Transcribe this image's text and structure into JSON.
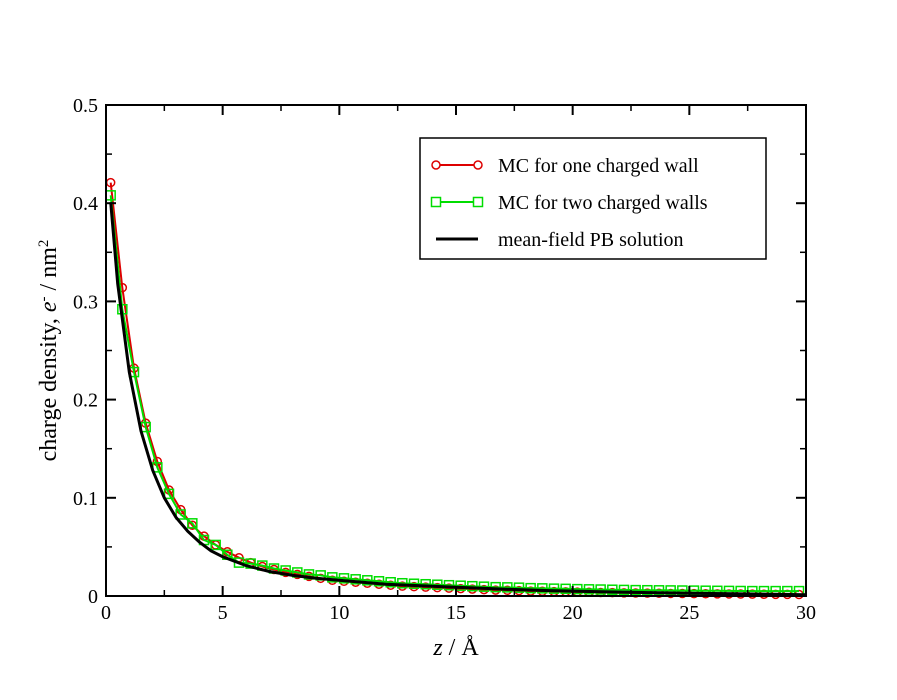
{
  "chart_data": {
    "type": "line",
    "title": "",
    "xlabel": {
      "symbol": "z",
      "rest": " / Å"
    },
    "ylabel": {
      "prefix": "charge density, ",
      "symbol": "e",
      "sup_minus": "-",
      "mid": " / nm",
      "sup_two": "2"
    },
    "xlim": [
      0,
      30
    ],
    "ylim": [
      0,
      0.5
    ],
    "x_ticks": [
      0,
      5,
      10,
      15,
      20,
      25,
      30
    ],
    "x_tick_labels": [
      "0",
      "5",
      "10",
      "15",
      "20",
      "25",
      "30"
    ],
    "y_ticks": [
      0,
      0.1,
      0.2,
      0.3,
      0.4,
      0.5
    ],
    "y_tick_labels": [
      "0",
      "0.1",
      "0.2",
      "0.3",
      "0.4",
      "0.5"
    ],
    "x_minor_step": 2.5,
    "y_minor_step": 0.05,
    "grid": false,
    "legend_position": "top-right",
    "series": [
      {
        "name": "MC for one charged wall",
        "color": "#dd0000",
        "marker": "circle",
        "x": [
          0.2,
          0.7,
          1.2,
          1.7,
          2.2,
          2.7,
          3.2,
          3.7,
          4.2,
          4.7,
          5.2,
          5.7,
          6.2,
          6.7,
          7.2,
          7.7,
          8.2,
          8.7,
          9.2,
          9.7,
          10.2,
          10.7,
          11.2,
          11.7,
          12.2,
          12.7,
          13.2,
          13.7,
          14.2,
          14.7,
          15.2,
          15.7,
          16.2,
          16.7,
          17.2,
          17.7,
          18.2,
          18.7,
          19.2,
          19.7,
          20.2,
          20.7,
          21.2,
          21.7,
          22.2,
          22.7,
          23.2,
          23.7,
          24.2,
          24.7,
          25.2,
          25.7,
          26.2,
          26.7,
          27.2,
          27.7,
          28.2,
          28.7,
          29.2,
          29.7
        ],
        "values": [
          0.421,
          0.314,
          0.232,
          0.176,
          0.137,
          0.108,
          0.088,
          0.072,
          0.061,
          0.052,
          0.045,
          0.039,
          0.034,
          0.03,
          0.027,
          0.024,
          0.022,
          0.02,
          0.018,
          0.016,
          0.015,
          0.014,
          0.013,
          0.012,
          0.011,
          0.01,
          0.0095,
          0.009,
          0.0085,
          0.008,
          0.0075,
          0.007,
          0.0065,
          0.006,
          0.0058,
          0.0055,
          0.005,
          0.0048,
          0.0045,
          0.0042,
          0.004,
          0.0038,
          0.0036,
          0.0034,
          0.0032,
          0.003,
          0.0029,
          0.0028,
          0.0026,
          0.0025,
          0.0024,
          0.0023,
          0.0022,
          0.0021,
          0.002,
          0.0019,
          0.0018,
          0.0017,
          0.0016,
          0.0015
        ]
      },
      {
        "name": "MC for two charged walls",
        "color": "#00dd00",
        "marker": "square",
        "x": [
          0.2,
          0.7,
          1.2,
          1.7,
          2.2,
          2.7,
          3.2,
          3.7,
          4.2,
          4.7,
          5.2,
          5.7,
          6.2,
          6.7,
          7.2,
          7.7,
          8.2,
          8.7,
          9.2,
          9.7,
          10.2,
          10.7,
          11.2,
          11.7,
          12.2,
          12.7,
          13.2,
          13.7,
          14.2,
          14.7,
          15.2,
          15.7,
          16.2,
          16.7,
          17.2,
          17.7,
          18.2,
          18.7,
          19.2,
          19.7,
          20.2,
          20.7,
          21.2,
          21.7,
          22.2,
          22.7,
          23.2,
          23.7,
          24.2,
          24.7,
          25.2,
          25.7,
          26.2,
          26.7,
          27.2,
          27.7,
          28.2,
          28.7,
          29.2,
          29.7
        ],
        "values": [
          0.408,
          0.292,
          0.228,
          0.172,
          0.131,
          0.104,
          0.083,
          0.074,
          0.057,
          0.052,
          0.042,
          0.034,
          0.033,
          0.031,
          0.028,
          0.026,
          0.024,
          0.022,
          0.021,
          0.019,
          0.018,
          0.017,
          0.016,
          0.015,
          0.014,
          0.013,
          0.0125,
          0.012,
          0.0115,
          0.011,
          0.0105,
          0.01,
          0.0095,
          0.009,
          0.0088,
          0.0085,
          0.008,
          0.0078,
          0.0075,
          0.0073,
          0.007,
          0.0068,
          0.0066,
          0.0064,
          0.0062,
          0.006,
          0.0059,
          0.0058,
          0.0057,
          0.0056,
          0.0055,
          0.0054,
          0.0053,
          0.0052,
          0.0051,
          0.005,
          0.005,
          0.005,
          0.005,
          0.005
        ]
      },
      {
        "name": "mean-field PB solution",
        "color": "#000000",
        "marker": "none",
        "x": [
          0.2,
          0.5,
          1.0,
          1.5,
          2.0,
          2.5,
          3.0,
          3.5,
          4.0,
          4.5,
          5.0,
          6.0,
          7.0,
          8.0,
          9.0,
          10.0,
          11.0,
          12.0,
          13.0,
          14.0,
          15.0,
          16.0,
          17.0,
          18.0,
          19.0,
          20.0,
          21.0,
          22.0,
          23.0,
          24.0,
          25.0,
          26.0,
          27.0,
          28.0,
          29.0,
          30.0
        ],
        "values": [
          0.401,
          0.318,
          0.228,
          0.168,
          0.128,
          0.1,
          0.08,
          0.066,
          0.055,
          0.046,
          0.04,
          0.031,
          0.025,
          0.021,
          0.018,
          0.016,
          0.014,
          0.012,
          0.011,
          0.01,
          0.009,
          0.008,
          0.007,
          0.0062,
          0.0055,
          0.005,
          0.0045,
          0.004,
          0.0036,
          0.0032,
          0.0028,
          0.0025,
          0.0022,
          0.0019,
          0.0016,
          0.0013
        ]
      }
    ]
  }
}
